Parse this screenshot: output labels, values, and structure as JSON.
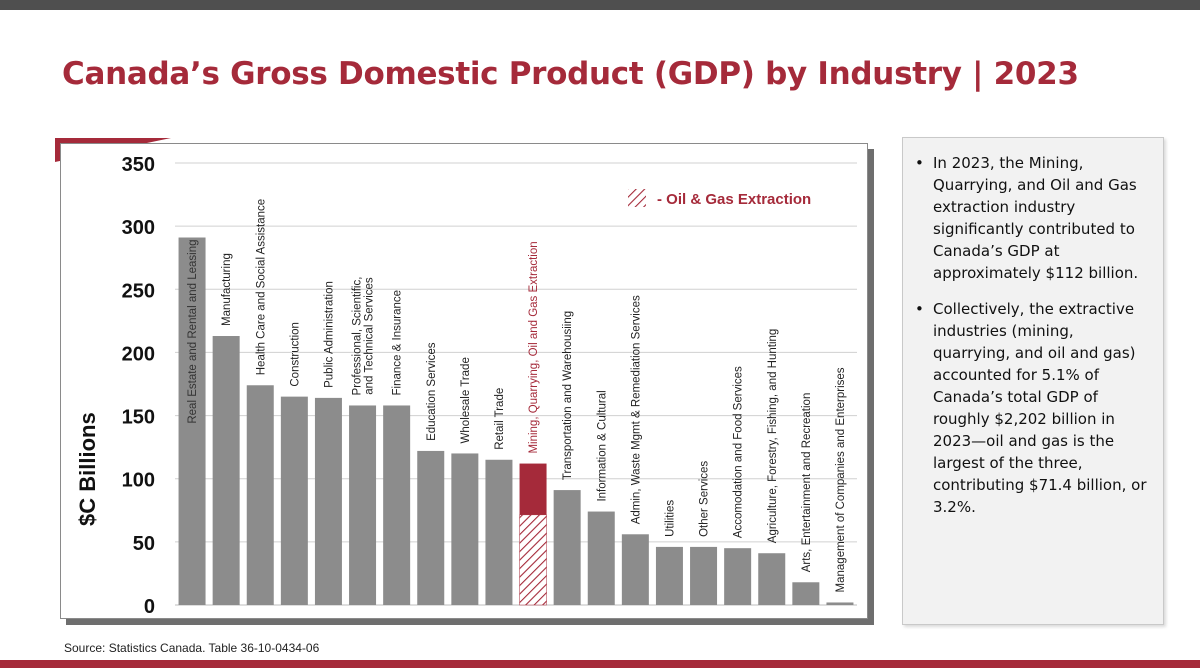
{
  "slide": {
    "title": "Canada’s Gross Domestic Product (GDP) by Industry | 2023",
    "source": "Source: Statistics Canada. Table 36-10-0434-06"
  },
  "colors": {
    "brand": "#a52a3a",
    "bar": "#8c8c8c",
    "grid": "#d0d0d0"
  },
  "chart_data": {
    "type": "bar",
    "ylabel": "$C Billions",
    "ylim": [
      0,
      350
    ],
    "yticks": [
      0,
      50,
      100,
      150,
      200,
      250,
      300,
      350
    ],
    "grid": true,
    "legend": {
      "label": "- Oil & Gas Extraction",
      "position": "top-right"
    },
    "categories": [
      "Real Estate and Rental and Leasing",
      "Manufacturing",
      "Health Care and Social Assistance",
      "Construction",
      "Public Administration",
      "Professional, Scientific, and Technical Services",
      "Finance & Insurance",
      "Education Services",
      "Wholesale Trade",
      "Retail Trade",
      "Mining, Quarrying, Oil and Gas Extraction",
      "Transportation and Warehousiing",
      "Information & Cultural",
      "Admin, Waste Mgmt & Remediation Services",
      "Utilities",
      "Other Services",
      "Accomodation and Food Services",
      "Agriculture, Forestry, Fishing, and Hunting",
      "Arts, Entertainment and Recreation",
      "Management of Companies and Enterprises"
    ],
    "values": [
      291,
      213,
      174,
      165,
      164,
      158,
      158,
      122,
      120,
      115,
      112,
      91,
      74,
      56,
      46,
      46,
      45,
      41,
      18,
      2
    ],
    "highlight_category": "Mining, Quarrying, Oil and Gas Extraction",
    "oil_gas_extraction": 71.4
  },
  "sidebar": {
    "bullets": [
      "In 2023, the Mining, Quarrying, and Oil and Gas extraction industry significantly contributed to Canada’s GDP at approximately $112 billion.",
      "Collectively, the extractive industries (mining, quarrying, and oil and gas) accounted for 5.1% of Canada’s total GDP of roughly $2,202 billion in 2023—oil and gas is the largest of the three, contributing $71.4 billion, or 3.2%."
    ]
  }
}
